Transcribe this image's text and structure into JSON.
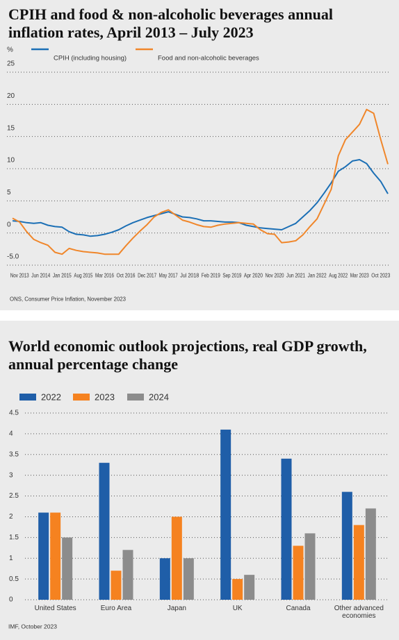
{
  "chart_data": [
    {
      "type": "line",
      "title": "CPIH and food & non-alcoholic beverages annual inflation rates, April 2013 – July 2023",
      "y_label": "%",
      "source": "ONS, Consumer Price Inflation, November 2023",
      "categories": [
        null,
        "Nov 2013",
        null,
        null,
        "Jun 2014",
        null,
        null,
        "Jan 2015",
        null,
        null,
        "Aug 2015",
        null,
        null,
        "Mar 2016",
        null,
        null,
        "Oct 2016",
        null,
        null,
        "Dec 2017",
        null,
        null,
        "May 2017",
        null,
        null,
        "Jul 2018",
        null,
        null,
        "Feb 2019",
        null,
        null,
        "Sep 2019",
        null,
        null,
        "Apr 2020",
        null,
        null,
        "Nov 2020",
        null,
        null,
        "Jun 2021",
        null,
        null,
        "Jan 2022",
        null,
        null,
        "Aug 2022",
        null,
        null,
        "Mar 2023",
        null,
        null,
        "Oct 2023",
        null
      ],
      "series": [
        {
          "name": "CPIH (including housing)",
          "color": "#1b6fb5",
          "values": [
            1.9,
            1.8,
            1.6,
            1.5,
            1.6,
            1.2,
            1.0,
            0.9,
            0.2,
            -0.2,
            -0.3,
            -0.5,
            -0.4,
            -0.2,
            0.1,
            0.5,
            1.1,
            1.6,
            2.0,
            2.4,
            2.7,
            3.0,
            3.3,
            2.9,
            2.5,
            2.4,
            2.2,
            1.9,
            1.9,
            1.8,
            1.7,
            1.7,
            1.6,
            1.2,
            1.0,
            0.8,
            0.7,
            0.6,
            0.5,
            1.0,
            1.5,
            2.5,
            3.5,
            4.7,
            6.2,
            7.8,
            9.6,
            10.3,
            11.2,
            11.4,
            10.8,
            9.3,
            8.0,
            6.1
          ]
        },
        {
          "name": "Food and non-alcoholic beverages",
          "color": "#f0862a",
          "values": [
            2.3,
            1.7,
            0.2,
            -1.0,
            -1.5,
            -1.9,
            -3.0,
            -3.3,
            -2.4,
            -2.7,
            -2.9,
            -3.0,
            -3.1,
            -3.3,
            -3.3,
            -3.3,
            -2.0,
            -0.8,
            0.3,
            1.3,
            2.5,
            3.2,
            3.6,
            2.8,
            2.0,
            1.7,
            1.3,
            1.0,
            0.9,
            1.2,
            1.4,
            1.5,
            1.6,
            1.5,
            1.4,
            0.5,
            -0.1,
            -0.2,
            -1.5,
            -1.4,
            -1.2,
            -0.3,
            1.0,
            2.2,
            4.5,
            6.8,
            12.0,
            14.5,
            15.7,
            16.9,
            19.2,
            18.6,
            14.5,
            10.7
          ]
        }
      ],
      "ylim": [
        -5,
        25
      ],
      "yticks": [
        {
          "value": -5,
          "label": "-5.0"
        },
        0,
        5,
        10,
        15,
        20,
        25
      ],
      "grid": true
    },
    {
      "type": "bar",
      "title": "World economic outlook projections, real GDP growth, annual percentage change",
      "source": "IMF, October 2023",
      "categories": [
        "United States",
        "Euro Area",
        "Japan",
        "UK",
        "Canada",
        "Other advanced economies"
      ],
      "series": [
        {
          "name": "2022",
          "color": "#1f5ea8",
          "values": [
            2.1,
            3.3,
            1.0,
            4.1,
            3.4,
            2.6
          ]
        },
        {
          "name": "2023",
          "color": "#f58220",
          "values": [
            2.1,
            0.7,
            2.0,
            0.5,
            1.3,
            1.8
          ]
        },
        {
          "name": "2024",
          "color": "#8c8c8c",
          "values": [
            1.5,
            1.2,
            1.0,
            0.6,
            1.6,
            2.2
          ]
        }
      ],
      "ylim": [
        0,
        4.5
      ],
      "yticks": [
        0,
        0.5,
        1,
        1.5,
        2,
        2.5,
        3,
        3.5,
        4,
        4.5
      ],
      "grid": true
    }
  ]
}
